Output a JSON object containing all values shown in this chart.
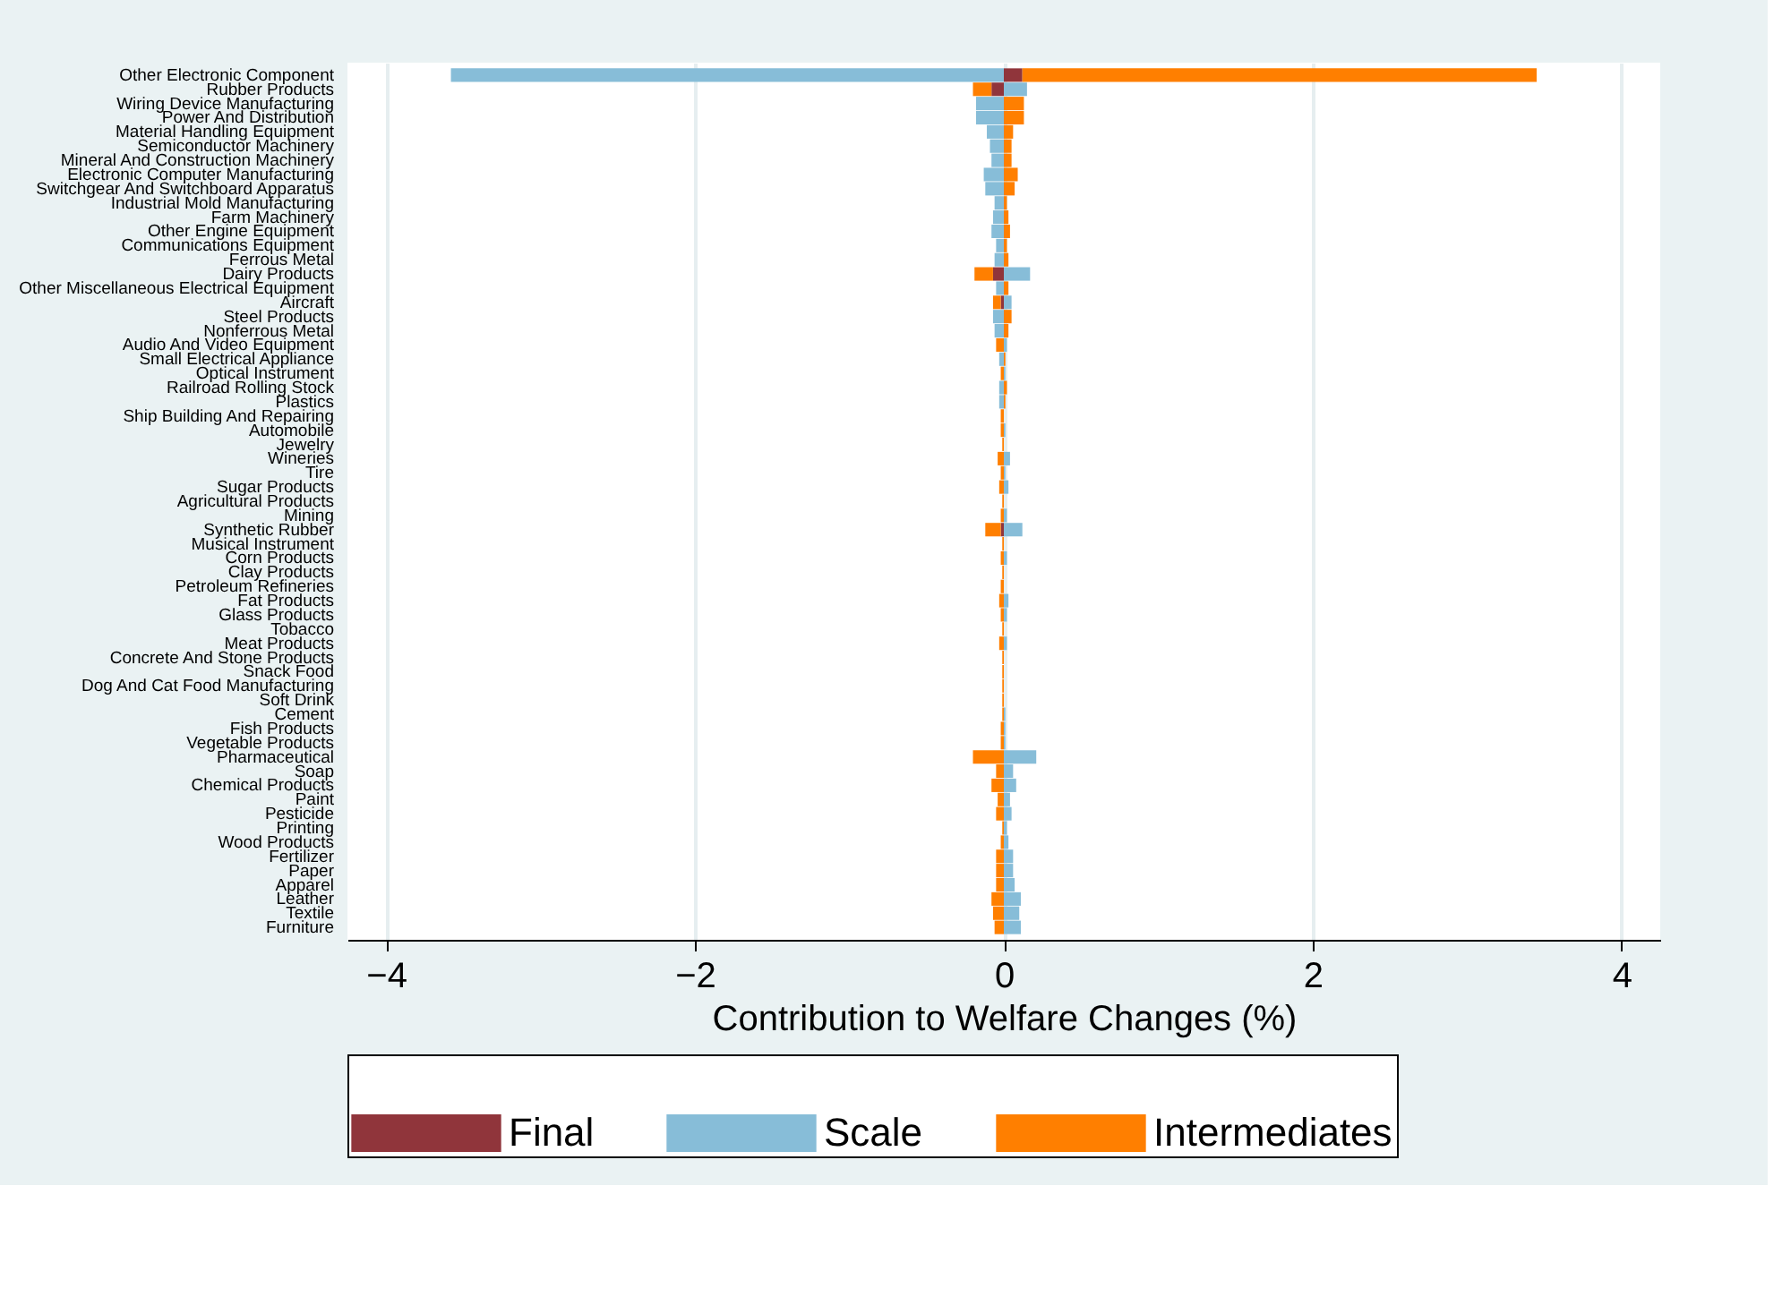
{
  "chart_data": {
    "type": "bar",
    "orientation": "horizontal",
    "stacked": true,
    "xlabel": "Contribution to Welfare Changes (%)",
    "categories": [
      "Other Electronic Component",
      "Rubber Products",
      "Wiring Device Manufacturing",
      "Power And Distribution",
      "Material Handling Equipment",
      "Semiconductor Machinery",
      "Mineral And Construction Machinery",
      "Electronic Computer Manufacturing",
      "Switchgear And Switchboard Apparatus",
      "Industrial Mold Manufacturing",
      "Farm Machinery",
      "Other Engine Equipment",
      "Communications Equipment",
      "Ferrous Metal",
      "Dairy Products",
      "Other Miscellaneous Electrical Equipment",
      "Aircraft",
      "Steel Products",
      "Nonferrous Metal",
      "Audio And Video Equipment",
      "Small Electrical Appliance",
      "Optical Instrument",
      "Railroad Rolling Stock",
      "Plastics",
      "Ship Building And Repairing",
      "Automobile",
      "Jewelry",
      "Wineries",
      "Tire",
      "Sugar Products",
      "Agricultural Products",
      "Mining",
      "Synthetic Rubber",
      "Musical Instrument",
      "Corn Products",
      "Clay Products",
      "Petroleum Refineries",
      "Fat Products",
      "Glass Products",
      "Tobacco",
      "Meat Products",
      "Concrete And Stone Products",
      "Snack Food",
      "Dog And Cat Food Manufacturing",
      "Soft Drink",
      "Cement",
      "Fish Products",
      "Vegetable Products",
      "Pharmaceutical",
      "Soap",
      "Chemical Products",
      "Paint",
      "Pesticide",
      "Printing",
      "Wood Products",
      "Fertilizer",
      "Paper",
      "Apparel",
      "Leather",
      "Textile",
      "Furniture"
    ],
    "series": [
      {
        "name": "Final",
        "color": "#90353b",
        "values": [
          0.12,
          -0.08,
          null,
          null,
          null,
          null,
          null,
          null,
          null,
          null,
          null,
          null,
          null,
          null,
          -0.07,
          null,
          -0.02,
          null,
          null,
          null,
          null,
          null,
          null,
          null,
          null,
          null,
          null,
          null,
          null,
          null,
          null,
          null,
          -0.02,
          null,
          null,
          null,
          null,
          null,
          null,
          null,
          null,
          null,
          null,
          null,
          null,
          null,
          null,
          null,
          null,
          null,
          null,
          null,
          null,
          null,
          null,
          null,
          null,
          null,
          null,
          null,
          null
        ]
      },
      {
        "name": "Scale",
        "color": "#87bdd8",
        "values": [
          -3.58,
          0.15,
          -0.18,
          -0.18,
          -0.11,
          -0.09,
          -0.08,
          -0.13,
          -0.12,
          -0.06,
          -0.07,
          -0.08,
          -0.05,
          -0.06,
          0.17,
          -0.05,
          0.05,
          -0.07,
          -0.06,
          0.02,
          -0.03,
          0.01,
          -0.03,
          -0.03,
          null,
          0.01,
          null,
          0.04,
          0.01,
          0.03,
          null,
          0.02,
          0.12,
          null,
          0.02,
          null,
          null,
          0.03,
          0.02,
          null,
          0.02,
          null,
          null,
          null,
          null,
          0.01,
          0.01,
          0.01,
          0.21,
          0.06,
          0.08,
          0.04,
          0.05,
          0.02,
          0.03,
          0.06,
          0.06,
          0.07,
          0.11,
          0.1,
          0.11
        ]
      },
      {
        "name": "Intermediates",
        "color": "#ff7f00",
        "values": [
          3.33,
          -0.12,
          0.13,
          0.13,
          0.06,
          0.05,
          0.05,
          0.09,
          0.07,
          0.02,
          0.03,
          0.04,
          0.02,
          0.03,
          -0.12,
          0.03,
          -0.05,
          0.05,
          0.03,
          -0.05,
          0.01,
          -0.02,
          0.02,
          0.01,
          -0.02,
          -0.02,
          -0.01,
          -0.04,
          -0.02,
          -0.03,
          -0.01,
          -0.02,
          -0.1,
          -0.01,
          -0.02,
          -0.01,
          -0.02,
          -0.03,
          -0.02,
          -0.01,
          -0.03,
          -0.01,
          -0.01,
          -0.01,
          -0.01,
          -0.01,
          -0.02,
          -0.02,
          -0.2,
          -0.05,
          -0.08,
          -0.04,
          -0.05,
          -0.01,
          -0.02,
          -0.05,
          -0.05,
          -0.05,
          -0.08,
          -0.07,
          -0.06
        ]
      }
    ],
    "xlim": [
      -4.25,
      4.25
    ],
    "xticks": [
      {
        "value": -4,
        "label": "−4"
      },
      {
        "value": -2,
        "label": "−2"
      },
      0,
      2,
      4
    ],
    "grid": "x",
    "legend": "bottom"
  }
}
